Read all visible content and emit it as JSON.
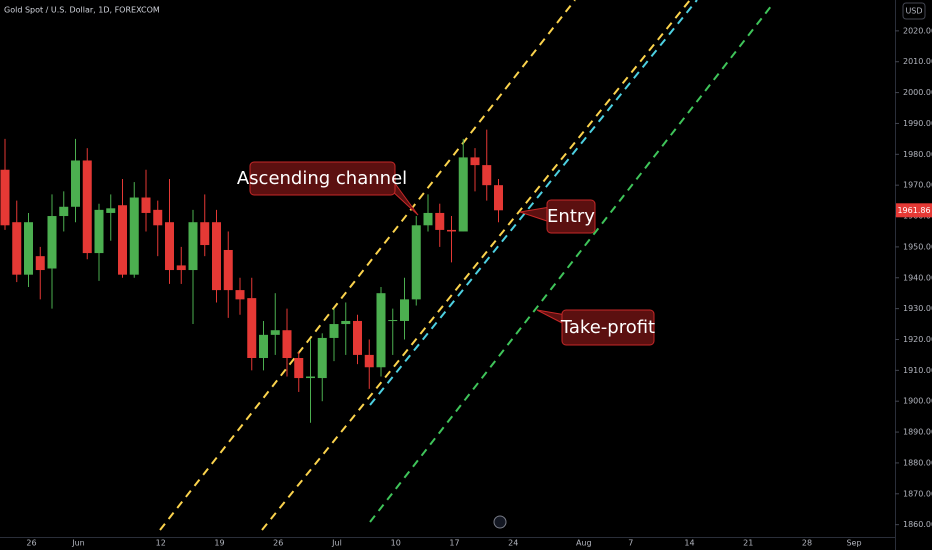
{
  "chart_data": {
    "type": "candlestick",
    "title": "Gold Spot / U.S. Dollar, 1D, FOREXCOM",
    "currency": "USD",
    "categories": [
      null,
      null,
      "26",
      null,
      null,
      null,
      "Jun",
      null,
      null,
      null,
      null,
      null,
      null,
      "12",
      null,
      null,
      null,
      null,
      "19",
      null,
      null,
      null,
      null,
      "26",
      null,
      null,
      null,
      null,
      "Jul",
      null,
      null,
      null,
      null,
      "10",
      null,
      null,
      null,
      null,
      "17",
      null,
      null,
      null,
      null,
      "24",
      null,
      null,
      null,
      null,
      null,
      "Aug",
      null,
      null,
      null,
      "7",
      null,
      null,
      null,
      null,
      "14",
      null,
      null,
      null,
      null,
      "21",
      null,
      null,
      null,
      null,
      "28",
      null,
      null,
      null,
      "Sep",
      null,
      null,
      null
    ],
    "open": [
      1975,
      1958,
      1941,
      1947,
      1943,
      1960,
      1963,
      1978,
      1948,
      1961,
      1963.5,
      1941,
      1966,
      1962,
      1958,
      1944,
      1942.5,
      1958,
      1958,
      1949,
      1936,
      1933.4,
      1914,
      1921.5,
      1923,
      1914,
      1907.5,
      1907.5,
      1920.5,
      1925,
      1926,
      1915,
      1911,
      1926,
      1926,
      1933,
      1957,
      1961,
      1955.5,
      1955,
      1979,
      1976.5,
      1970,
      null,
      null,
      null,
      null,
      null,
      null,
      null,
      null,
      null,
      null,
      null,
      null,
      null,
      null,
      null,
      null,
      null,
      null,
      null,
      null,
      null,
      null,
      null,
      null,
      null,
      null,
      null,
      null,
      null,
      null,
      null,
      null,
      null
    ],
    "high": [
      1985,
      1965,
      1961,
      1950,
      1967,
      1968,
      1985,
      1982,
      1964,
      1967,
      1972,
      1971,
      1975,
      1965,
      1972,
      1950,
      1962,
      1967,
      1962,
      1955,
      1940,
      1940,
      1926,
      1935,
      1930,
      1916,
      1920,
      1922,
      1930,
      1932,
      1928,
      1920,
      1937,
      1930,
      1940,
      1960,
      1967,
      1964,
      1960,
      1985,
      1982,
      1988,
      1972,
      null,
      null,
      null,
      null,
      null,
      null,
      null,
      null,
      null,
      null,
      null,
      null,
      null,
      null,
      null,
      null,
      null,
      null,
      null,
      null,
      null,
      null,
      null,
      null,
      null,
      null,
      null,
      null,
      null,
      null,
      null,
      null,
      null
    ],
    "low": [
      1955.5,
      1938.6,
      1937,
      1933,
      1930,
      1955,
      1958,
      1946,
      1939,
      1952,
      1940,
      1940,
      1955,
      1947,
      1938,
      1938,
      1925,
      1947,
      1932,
      1927,
      1928,
      1910,
      1910,
      1915,
      1908,
      1903,
      1893,
      1900,
      1913,
      1915,
      1912,
      1904,
      1908,
      1915,
      1920,
      1931,
      1955,
      1950,
      1945,
      1955,
      1968,
      1965,
      1958,
      null,
      null,
      null,
      null,
      null,
      null,
      null,
      null,
      null,
      null,
      null,
      null,
      null,
      null,
      null,
      null,
      null,
      null,
      null,
      null,
      null,
      null,
      null,
      null,
      null,
      null,
      null,
      null,
      null,
      null,
      null,
      null,
      null
    ],
    "close": [
      1957,
      1941,
      1958,
      1942.5,
      1960,
      1963,
      1978,
      1948,
      1962,
      1962.5,
      1941,
      1966,
      1961,
      1957,
      1942.5,
      1942.5,
      1958,
      1950.6,
      1936,
      1936,
      1933,
      1914,
      1921.5,
      1923,
      1914,
      1907.5,
      1908,
      1920.5,
      1925,
      1926,
      1915,
      1911,
      1935,
      1926.3,
      1933,
      1957,
      1961,
      1955.5,
      1955,
      1979,
      1976.5,
      1970,
      1961.86,
      null,
      null,
      null,
      null,
      null,
      null,
      null,
      null,
      null,
      null,
      null,
      null,
      null,
      null,
      null,
      null,
      null,
      null,
      null,
      null,
      null,
      null,
      null,
      null,
      null,
      null,
      null,
      null,
      null,
      null,
      null,
      null,
      null
    ],
    "up_color": "#4caf50",
    "down_color": "#e53935",
    "ylim": [
      1856,
      2030
    ],
    "yticks": [
      {
        "value": 1860,
        "label": "1860.00"
      },
      {
        "value": 1870,
        "label": "1870.00"
      },
      {
        "value": 1880,
        "label": "1880.00"
      },
      {
        "value": 1890,
        "label": "1890.00"
      },
      {
        "value": 1900,
        "label": "1900.00"
      },
      {
        "value": 1910,
        "label": "1910.00"
      },
      {
        "value": 1920,
        "label": "1920.00"
      },
      {
        "value": 1930,
        "label": "1930.00"
      },
      {
        "value": 1940,
        "label": "1940.00"
      },
      {
        "value": 1950,
        "label": "1950.00"
      },
      {
        "value": 1960,
        "label": "1960.00"
      },
      {
        "value": 1970,
        "label": "1970.00"
      },
      {
        "value": 1980,
        "label": "1980.00"
      },
      {
        "value": 1990,
        "label": "1990.00"
      },
      {
        "value": 2000,
        "label": "2000.00"
      },
      {
        "value": 2010,
        "label": "2010.00"
      },
      {
        "value": 2020,
        "label": "2020.00"
      }
    ],
    "annotations": [
      "Ascending channel",
      "Entry",
      "Take-profit"
    ]
  }
}
